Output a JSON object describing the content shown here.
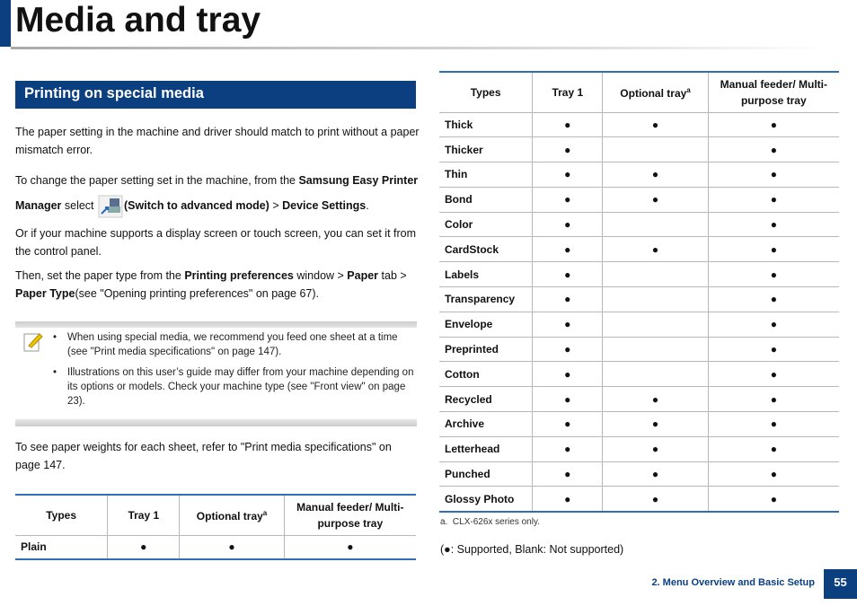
{
  "header": {
    "title": "Media and tray"
  },
  "section": {
    "heading": "Printing on special media"
  },
  "paragraphs": [
    [
      "The paper setting in the machine and driver should match to print without a paper mismatch error."
    ],
    [
      "To change the paper setting set in the machine, from the ",
      "Samsung Easy Printer Manager",
      " select ",
      "(Switch to advanced mode)",
      " > ",
      "Device Settings",
      "."
    ],
    [
      "Or if your machine supports a display screen or touch screen, you can set it from the control panel."
    ],
    [
      "Then, set the paper type from the ",
      "Printing preferences",
      " window > ",
      "Paper",
      " tab > ",
      "Paper Type",
      "(see \"Opening printing preferences\" on page 67)."
    ]
  ],
  "notes": [
    "When using special media, we recommend you feed one sheet at a time (see \"Print media specifications\" on page 147).",
    "Illustrations on this user’s guide may differ from your machine depending on its options or models. Check your machine type (see \"Front view\" on page 23)."
  ],
  "after_note": "To see paper weights for each sheet, refer to \"Print media specifications\" on page 147.",
  "tables": [
    {
      "headers": [
        "Types",
        "Tray 1",
        {
          "text": "Optional tray",
          "marker": "a"
        },
        "Manual feeder/ Multi-purpose tray"
      ],
      "rows": [
        [
          "Plain",
          "●",
          "●",
          "●"
        ]
      ]
    },
    {
      "headers": [
        "Types",
        "Tray 1",
        {
          "text": "Optional tray",
          "marker": "a"
        },
        "Manual feeder/ Multi-purpose tray"
      ],
      "rows": [
        [
          "Thick",
          "●",
          "●",
          "●"
        ],
        [
          "Thicker",
          "●",
          null,
          "●"
        ],
        [
          "Thin",
          "●",
          "●",
          "●"
        ],
        [
          "Bond",
          "●",
          "●",
          "●"
        ],
        [
          "Color",
          "●",
          null,
          "●"
        ],
        [
          "CardStock",
          "●",
          "●",
          "●"
        ],
        [
          "Labels",
          "●",
          null,
          "●"
        ],
        [
          "Transparency",
          "●",
          null,
          "●"
        ],
        [
          "Envelope",
          "●",
          null,
          "●"
        ],
        [
          "Preprinted",
          "●",
          null,
          "●"
        ],
        [
          "Cotton",
          "●",
          null,
          "●"
        ],
        [
          "Recycled",
          "●",
          "●",
          "●"
        ],
        [
          "Archive",
          "●",
          "●",
          "●"
        ],
        [
          "Letterhead",
          "●",
          "●",
          "●"
        ],
        [
          "Punched",
          "●",
          "●",
          "●"
        ],
        [
          "Glossy Photo",
          "●",
          "●",
          "●"
        ]
      ]
    }
  ],
  "footnote": {
    "label": "a.",
    "text": "CLX-626x series only."
  },
  "legend": "(●: Supported, Blank: Not supported)",
  "footer": {
    "chapter": "2. Menu Overview and Basic Setup",
    "page": "55"
  }
}
